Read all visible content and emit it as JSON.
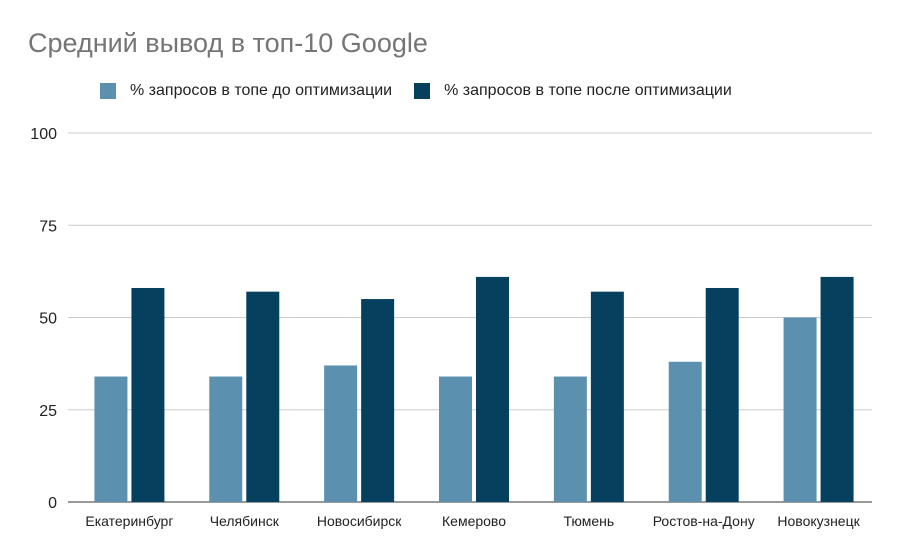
{
  "chart_data": {
    "type": "bar",
    "title": "Средний вывод в топ-10 Google",
    "categories": [
      "Екатеринбург",
      "Челябинск",
      "Новосибирск",
      "Кемерово",
      "Тюмень",
      "Ростов-на-Дону",
      "Новокузнецк"
    ],
    "series": [
      {
        "name": "% запросов в топе до оптимизации",
        "color": "#5b90af",
        "values": [
          34,
          34,
          37,
          34,
          34,
          38,
          50
        ]
      },
      {
        "name": "% запросов в топе после оптимизации",
        "color": "#05415f",
        "values": [
          58,
          57,
          55,
          61,
          57,
          58,
          61
        ]
      }
    ],
    "ylim": [
      0,
      100
    ],
    "yticks": [
      0,
      25,
      50,
      75,
      100
    ],
    "grid": true,
    "legend_position": "top"
  }
}
